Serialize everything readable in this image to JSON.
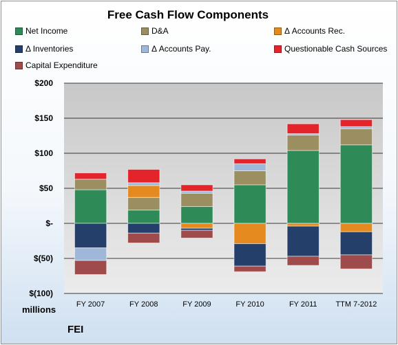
{
  "chart_data": {
    "type": "bar",
    "stacked": true,
    "title": "Free Cash Flow Components",
    "units_label": "millions",
    "company": "FEI",
    "categories": [
      "FY 2007",
      "FY 2008",
      "FY 2009",
      "FY 2010",
      "FY 2011",
      "TTM 7-2012"
    ],
    "y_ticks": [
      "$200",
      "$150",
      "$100",
      "$50",
      "$-",
      "$(50)",
      "$(100)"
    ],
    "ylim": [
      -100,
      200
    ],
    "grid": true,
    "legend_position": "top",
    "series": [
      {
        "name": "Net Income",
        "color": "#2e8b57",
        "values": [
          48,
          19,
          24,
          55,
          104,
          112
        ]
      },
      {
        "name": "D&A",
        "color": "#9b8e61",
        "values": [
          15,
          18,
          19,
          20,
          22,
          23
        ]
      },
      {
        "name": "Δ Accounts Rec.",
        "color": "#e58a1f",
        "values": [
          0,
          17,
          -7,
          -29,
          -4,
          -12
        ]
      },
      {
        "name": "Δ Inventories",
        "color": "#243f6a",
        "values": [
          -35,
          -14,
          -3,
          -32,
          -43,
          -33
        ]
      },
      {
        "name": "Δ Accounts Pay.",
        "color": "#9fb7d9",
        "values": [
          -18,
          4,
          3,
          10,
          2,
          3
        ]
      },
      {
        "name": "Questionable Cash Sources",
        "color": "#e3242b",
        "values": [
          9,
          19,
          9,
          7,
          14,
          10
        ]
      },
      {
        "name": "Capital Expenditure",
        "color": "#a04b4b",
        "values": [
          -20,
          -14,
          -11,
          -8,
          -13,
          -20
        ]
      }
    ]
  }
}
